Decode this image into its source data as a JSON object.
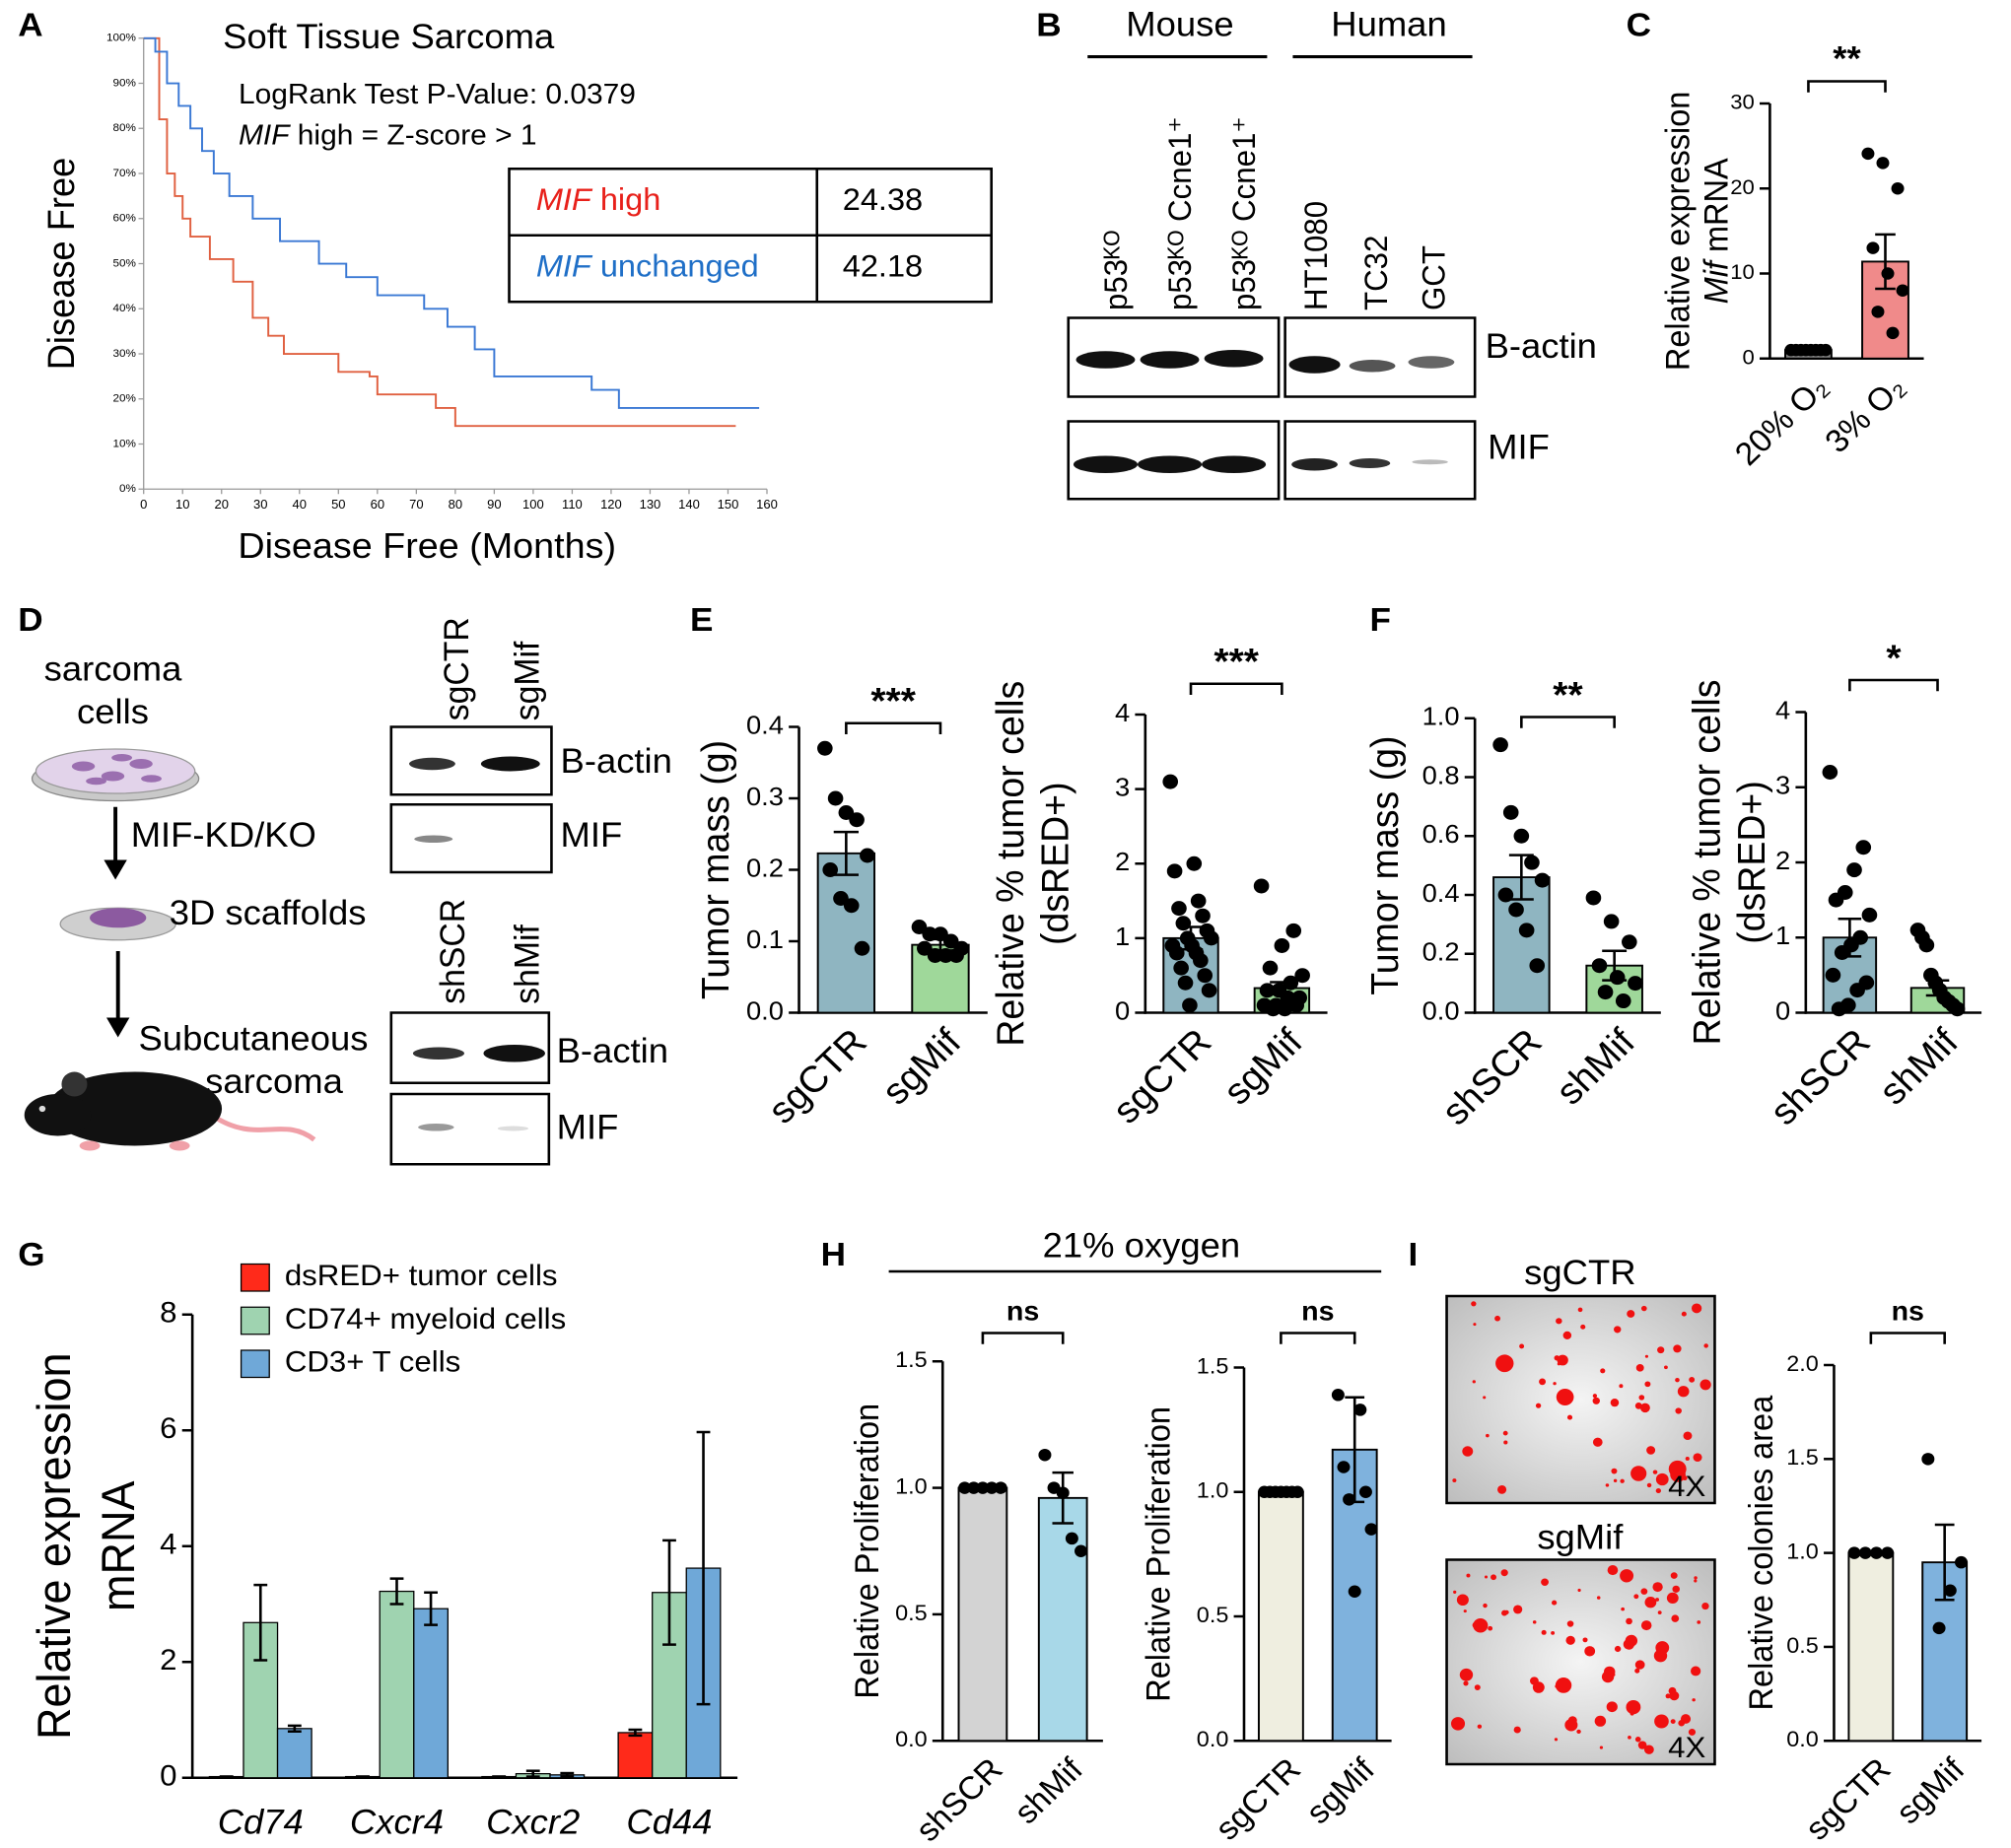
{
  "panel_labels": [
    "A",
    "B",
    "C",
    "D",
    "E",
    "F",
    "G",
    "H",
    "I"
  ],
  "chart_data": [
    {
      "type": "step",
      "title": "Soft Tissue Sarcoma",
      "annotations": [
        "LogRank Test P-Value: 0.0379",
        [
          "MIF",
          " high = Z-score > 1"
        ]
      ],
      "table": [
        {
          "label": [
            "MIF",
            " high"
          ],
          "value": 24.38,
          "color": "#e8201a"
        },
        {
          "label": [
            "MIF",
            " unchanged"
          ],
          "value": 42.18,
          "color": "#1f6fc7"
        }
      ],
      "xlabel": "Disease Free (Months)",
      "ylabel": "Disease Free",
      "xlim": [
        0,
        160
      ],
      "xticks": [
        0,
        10,
        20,
        30,
        40,
        50,
        60,
        70,
        80,
        90,
        100,
        110,
        120,
        130,
        140,
        150,
        160
      ],
      "ylim": [
        0,
        100
      ],
      "yticks": [
        {
          "value": 0,
          "label": "0%"
        },
        {
          "value": 10,
          "label": "10%"
        },
        {
          "value": 20,
          "label": "20%"
        },
        {
          "value": 30,
          "label": "30%"
        },
        {
          "value": 40,
          "label": "40%"
        },
        {
          "value": 50,
          "label": "50%"
        },
        {
          "value": 60,
          "label": "60%"
        },
        {
          "value": 70,
          "label": "70%"
        },
        {
          "value": 80,
          "label": "80%"
        },
        {
          "value": 90,
          "label": "90%"
        },
        {
          "value": 100,
          "label": "100%"
        }
      ],
      "series": [
        {
          "color": "#e06040",
          "x": [
            0,
            4,
            6,
            8,
            10,
            12,
            17,
            23,
            28,
            32,
            36,
            50,
            58,
            60,
            75,
            80,
            152
          ],
          "values": [
            100,
            82,
            70,
            65,
            60,
            56,
            51,
            46,
            38,
            34,
            30,
            26,
            25,
            21,
            18,
            14,
            14
          ]
        },
        {
          "color": "#3a78d4",
          "x": [
            0,
            3,
            6,
            9,
            12,
            15,
            18,
            22,
            28,
            35,
            45,
            52,
            60,
            72,
            78,
            85,
            90,
            110,
            115,
            122,
            158
          ],
          "values": [
            100,
            97,
            90,
            85,
            80,
            75,
            70,
            65,
            60,
            55,
            50,
            47,
            43,
            40,
            36,
            31,
            25,
            25,
            22,
            18,
            18
          ]
        }
      ]
    },
    {
      "type": "bar",
      "categories": [
        "20% O₂",
        "3% O₂"
      ],
      "values": [
        1,
        11.4
      ],
      "errors": [
        0.1,
        3.2
      ],
      "colors": [
        "#7f7f7f",
        "#f08a8a"
      ],
      "points": [
        [
          1,
          1,
          1,
          1,
          1,
          1,
          1,
          1
        ],
        [
          24.1,
          23,
          20,
          13,
          10,
          8,
          5.5,
          3
        ]
      ],
      "ylim": [
        0,
        30
      ],
      "yticks": [
        0,
        10,
        20,
        30
      ],
      "ylabel": [
        "Relative expression",
        [
          "Mif",
          " mRNA"
        ]
      ],
      "significance": "**"
    },
    {
      "type": "bar",
      "categories": [
        "sgCTR",
        "sgMif"
      ],
      "values": [
        0.223,
        0.095
      ],
      "errors": [
        0.03,
        0.008
      ],
      "colors": [
        "#8fb5c1",
        "#9fd89a"
      ],
      "points": [
        [
          0.37,
          0.3,
          0.28,
          0.27,
          0.22,
          0.2,
          0.16,
          0.15,
          0.09
        ],
        [
          0.12,
          0.11,
          0.11,
          0.1,
          0.09,
          0.09,
          0.08,
          0.08,
          0.08
        ]
      ],
      "ylim": [
        0,
        0.4
      ],
      "yticks": [
        {
          "value": 0,
          "label": "0.0"
        },
        0.1,
        0.2,
        0.3,
        0.4
      ],
      "ylabel": [
        "Tumor mass (g)"
      ],
      "significance": "***"
    },
    {
      "type": "bar",
      "categories": [
        "sgCTR",
        "sgMif"
      ],
      "values": [
        1.0,
        0.33
      ],
      "errors": [
        0.15,
        0.08
      ],
      "colors": [
        "#8fb5c1",
        "#9fd89a"
      ],
      "points": [
        [
          3.1,
          2.0,
          1.9,
          1.5,
          1.4,
          1.3,
          1.2,
          1.1,
          1.0,
          1.0,
          0.9,
          0.9,
          0.8,
          0.8,
          0.7,
          0.6,
          0.5,
          0.4,
          0.3,
          0.1
        ],
        [
          1.7,
          1.1,
          0.9,
          0.6,
          0.5,
          0.4,
          0.3,
          0.3,
          0.2,
          0.2,
          0.1,
          0.1,
          0.1,
          0.05,
          0.05
        ]
      ],
      "ylim": [
        0,
        4
      ],
      "yticks": [
        0,
        1,
        2,
        3,
        4
      ],
      "ylabel": [
        "Relative % tumor cells",
        "(dsRED+)"
      ],
      "significance": "***"
    },
    {
      "type": "bar",
      "categories": [
        "shSCR",
        "shMif"
      ],
      "values": [
        0.46,
        0.16
      ],
      "errors": [
        0.075,
        0.05
      ],
      "colors": [
        "#8fb5c1",
        "#9fd89a"
      ],
      "points": [
        [
          0.91,
          0.68,
          0.6,
          0.51,
          0.45,
          0.4,
          0.35,
          0.28,
          0.16
        ],
        [
          0.39,
          0.31,
          0.24,
          0.16,
          0.12,
          0.1,
          0.07,
          0.04
        ]
      ],
      "ylim": [
        0,
        1.0
      ],
      "yticks": [
        {
          "value": 0,
          "label": "0.0"
        },
        0.2,
        0.4,
        0.6,
        0.8,
        {
          "value": 1,
          "label": "1.0"
        }
      ],
      "ylabel": [
        "Tumor mass (g)"
      ],
      "significance": "**"
    },
    {
      "type": "bar",
      "categories": [
        "shSCR",
        "shMif"
      ],
      "values": [
        1.0,
        0.33
      ],
      "errors": [
        0.25,
        0.1
      ],
      "colors": [
        "#8fb5c1",
        "#9fd89a"
      ],
      "points": [
        [
          3.2,
          2.2,
          1.9,
          1.6,
          1.5,
          1.3,
          1.0,
          0.9,
          0.8,
          0.5,
          0.4,
          0.3,
          0.1,
          0.05
        ],
        [
          1.1,
          1.0,
          0.9,
          0.5,
          0.4,
          0.3,
          0.2,
          0.15,
          0.1,
          0.05
        ]
      ],
      "ylim": [
        0,
        4
      ],
      "yticks": [
        0,
        1,
        2,
        3,
        4
      ],
      "ylabel": [
        "Relative % tumor cells",
        "(dsRED+)"
      ],
      "significance": "*"
    },
    {
      "type": "grouped-bar",
      "categories": [
        "Cd74",
        "Cxcr4",
        "Cxcr2",
        "Cd44"
      ],
      "italic_categories": true,
      "series": [
        {
          "name": "dsRED+ tumor cells",
          "color": "#ff2a1a",
          "values": [
            0.02,
            0.02,
            0.02,
            0.78
          ],
          "errors": [
            0,
            0,
            0,
            0.05
          ]
        },
        {
          "name": "CD74+ myeloid cells",
          "color": "#9fd3b0",
          "values": [
            2.68,
            3.22,
            0.07,
            3.2
          ],
          "errors": [
            0.65,
            0.22,
            0.05,
            0.9
          ]
        },
        {
          "name": "CD3+ T cells",
          "color": "#6fa8d8",
          "values": [
            0.85,
            2.92,
            0.05,
            3.62
          ],
          "errors": [
            0.05,
            0.28,
            0.03,
            2.35
          ]
        }
      ],
      "ylim": [
        0,
        8
      ],
      "yticks": [
        0,
        2,
        4,
        6,
        8
      ],
      "ylabel": [
        "Relative expression",
        "mRNA"
      ]
    },
    {
      "type": "bar",
      "categories": [
        "shSCR",
        "shMif"
      ],
      "values": [
        1.0,
        0.96
      ],
      "errors": [
        0,
        0.1
      ],
      "colors": [
        "#d3d3d3",
        "#a8d8e8"
      ],
      "points": [
        [
          1,
          1,
          1,
          1,
          1
        ],
        [
          1.13,
          1.0,
          0.98,
          0.8,
          0.75
        ]
      ],
      "ylim": [
        0,
        1.5
      ],
      "yticks": [
        {
          "value": 0,
          "label": "0.0"
        },
        0.5,
        {
          "value": 1,
          "label": "1.0"
        },
        1.5
      ],
      "ylabel": [
        "Relative Proliferation"
      ],
      "significance": "ns"
    },
    {
      "type": "bar",
      "categories": [
        "sgCTR",
        "sgMif"
      ],
      "values": [
        1.0,
        1.17
      ],
      "errors": [
        0,
        0.21
      ],
      "colors": [
        "#efeee0",
        "#7fb2dd"
      ],
      "points": [
        [
          1,
          1,
          1,
          1,
          1,
          1,
          1
        ],
        [
          1.39,
          1.33,
          1.1,
          1.0,
          0.97,
          0.85,
          0.6
        ]
      ],
      "ylim": [
        0,
        1.5
      ],
      "yticks": [
        {
          "value": 0,
          "label": "0.0"
        },
        0.5,
        {
          "value": 1,
          "label": "1.0"
        },
        1.5
      ],
      "ylabel": [
        "Relative Proliferation"
      ],
      "significance": "ns"
    },
    {
      "type": "bar",
      "categories": [
        "sgCTR",
        "sgMif"
      ],
      "values": [
        1.0,
        0.95
      ],
      "errors": [
        0,
        0.2
      ],
      "colors": [
        "#efeee0",
        "#7fb2dd"
      ],
      "points": [
        [
          1,
          1,
          1,
          1
        ],
        [
          1.5,
          0.95,
          0.8,
          0.6
        ]
      ],
      "ylim": [
        0,
        2.0
      ],
      "yticks": [
        {
          "value": 0,
          "label": "0.0"
        },
        0.5,
        {
          "value": 1,
          "label": "1.0"
        },
        1.5,
        {
          "value": 2,
          "label": "2.0"
        }
      ],
      "ylabel": [
        "Relative colonies area"
      ],
      "significance": "ns"
    }
  ],
  "blot_b": {
    "groups": [
      "Mouse",
      "Human"
    ],
    "lanes": [
      "p53ᴷᴼ",
      "p53ᴷᴼ Ccne1⁺",
      "p53ᴷᴼ Ccne1⁺",
      "HT1080",
      "TC32",
      "GCT"
    ],
    "rows": [
      "B-actin",
      "MIF"
    ]
  },
  "panel_d": {
    "cells": [
      "sarcoma",
      "cells"
    ],
    "treatment": "MIF-KD/KO",
    "scaffold": "3D scaffolds",
    "model": [
      "Subcutaneous",
      "sarcoma"
    ],
    "blots": [
      {
        "lanes": [
          "sgCTR",
          "sgMif"
        ],
        "rows": [
          "B-actin",
          "MIF"
        ]
      },
      {
        "lanes": [
          "shSCR",
          "shMif"
        ],
        "rows": [
          "B-actin",
          "MIF"
        ]
      }
    ]
  },
  "panel_h_header": "21% oxygen",
  "panel_i": {
    "images": [
      {
        "label": "sgCTR",
        "magnification": "4X"
      },
      {
        "label": "sgMif",
        "magnification": "4X"
      }
    ]
  }
}
